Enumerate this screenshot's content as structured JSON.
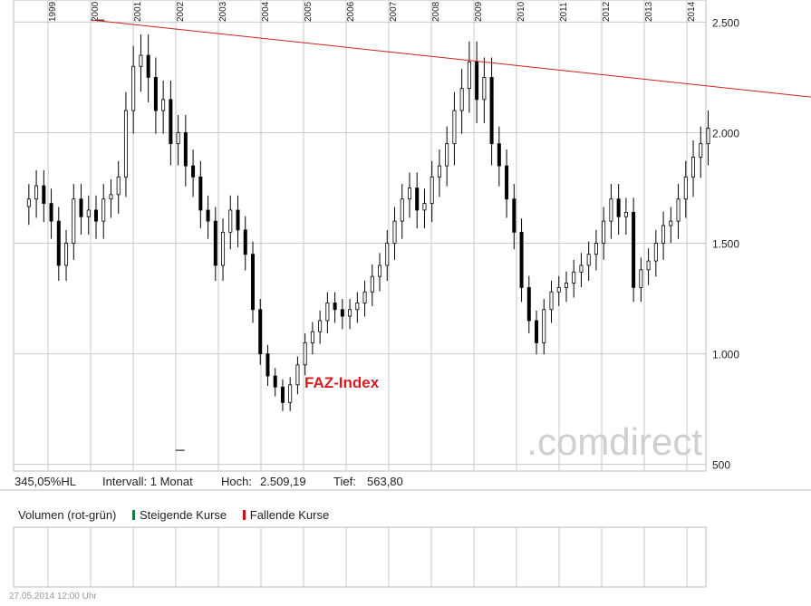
{
  "chart_data": {
    "type": "candlestick",
    "title": "FAZ-Index",
    "x_ticks": [
      "1999",
      "2000",
      "2001",
      "2002",
      "2003",
      "2004",
      "2005",
      "2006",
      "2007",
      "2008",
      "2009",
      "2010",
      "2011",
      "2012",
      "2013",
      "2014"
    ],
    "y_ticks": [
      "500",
      "1.000",
      "1.500",
      "2.000",
      "2.500"
    ],
    "y_tick_values": [
      500,
      1000,
      1500,
      2000,
      2500
    ],
    "ylim": [
      470,
      2600
    ],
    "interval": "1 Monat",
    "high": "2.509,19",
    "low": "563,80",
    "series_values": [
      1700,
      1760,
      1680,
      1600,
      1400,
      1500,
      1700,
      1620,
      1650,
      1600,
      1700,
      1720,
      1800,
      2100,
      2300,
      2350,
      2250,
      2100,
      2150,
      1950,
      2000,
      1850,
      1800,
      1650,
      1600,
      1400,
      1550,
      1650,
      1560,
      1450,
      1200,
      1000,
      900,
      850,
      780,
      860,
      950,
      1050,
      1100,
      1150,
      1230,
      1200,
      1170,
      1200,
      1230,
      1280,
      1350,
      1400,
      1500,
      1600,
      1700,
      1750,
      1650,
      1680,
      1800,
      1850,
      1950,
      2100,
      2200,
      2320,
      2150,
      2250,
      1950,
      1850,
      1700,
      1550,
      1300,
      1150,
      1050,
      1200,
      1280,
      1300,
      1320,
      1370,
      1400,
      1450,
      1500,
      1600,
      1700,
      1620,
      1640,
      1300,
      1380,
      1420,
      1500,
      1580,
      1600,
      1700,
      1800,
      1890,
      1950,
      2020
    ],
    "trendline": {
      "from": [
        2000.0,
        2510
      ],
      "to": [
        2014.55,
        2210
      ]
    }
  },
  "info": {
    "hl": "345,05%HL",
    "interval": "Intervall: 1 Monat",
    "hoch_label": "Hoch:",
    "hoch_value": "2.509,19",
    "tief_label": "Tief:",
    "tief_value": "563,80"
  },
  "volume": {
    "title": "Volumen (rot-grün)",
    "rising": "Steigende Kurse",
    "falling": "Fallende Kurse",
    "rising_color": "#1a7a3a",
    "falling_color": "#cc1111"
  },
  "watermark": ".comdirect",
  "timestamp": "27.05.2014 12:00 Uhr",
  "colors": {
    "trendline": "#cc2222",
    "title": "#d81b22",
    "grid": "#c8c8c8",
    "candle": "#000000"
  }
}
